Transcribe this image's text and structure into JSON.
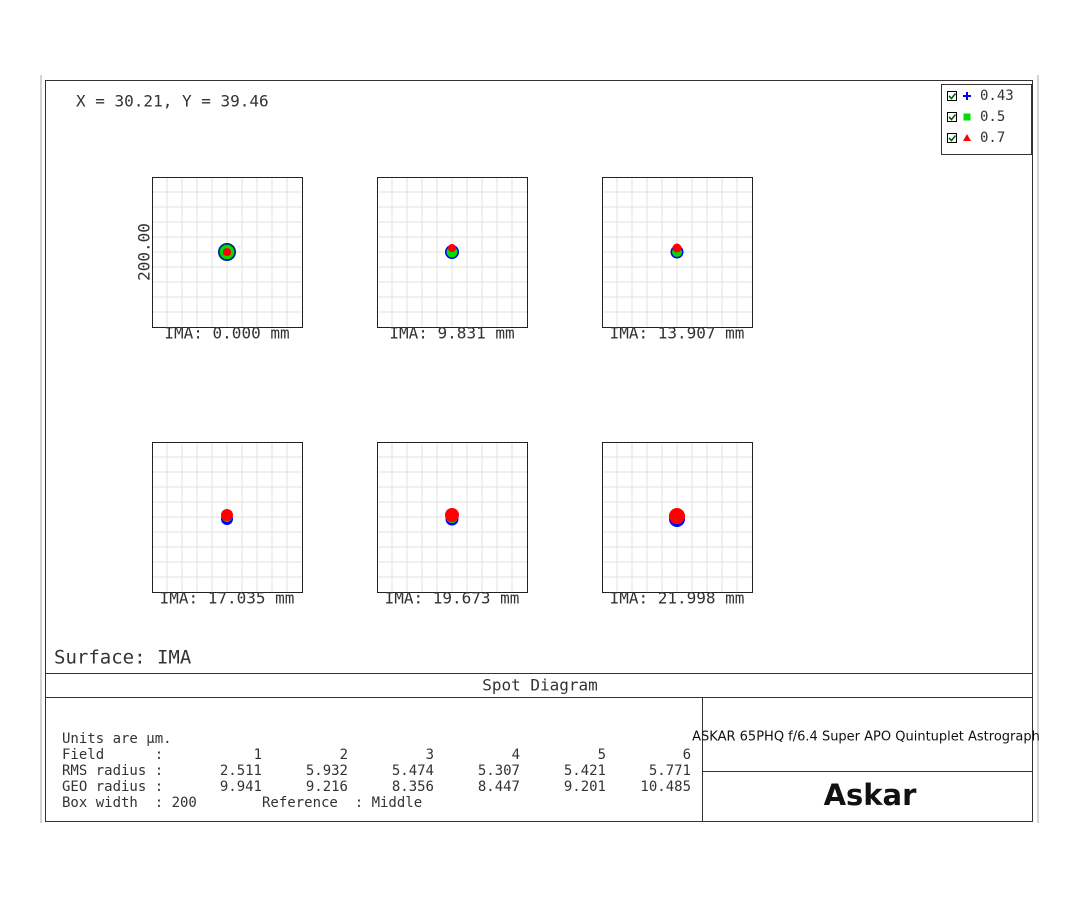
{
  "cursor": "X = 30.21, Y = 39.46",
  "legend": [
    "0.43",
    "0.5",
    "0.7"
  ],
  "scale_label": "200.00",
  "panels": [
    "IMA: 0.000 mm",
    "IMA: 9.831 mm",
    "IMA: 13.907 mm",
    "IMA: 17.035 mm",
    "IMA: 19.673 mm",
    "IMA: 21.998 mm"
  ],
  "surface": "Surface: IMA",
  "title": "Spot Diagram",
  "info": {
    "units": "Units are µm.",
    "rows": [
      {
        "label": "Field      :",
        "values": [
          1,
          2,
          3,
          4,
          5,
          6
        ]
      },
      {
        "label": "RMS radius :",
        "values": [
          2.511,
          5.932,
          5.474,
          5.307,
          5.421,
          5.771
        ]
      },
      {
        "label": "GEO radius :",
        "values": [
          9.941,
          9.216,
          8.356,
          8.447,
          9.201,
          10.485
        ]
      }
    ],
    "box_width": "Box width  : 200",
    "reference": "Reference  : Middle"
  },
  "product": "ASKAR 65PHQ f/6.4 Super APO Quintuplet Astrograph",
  "logo": "Askar"
}
